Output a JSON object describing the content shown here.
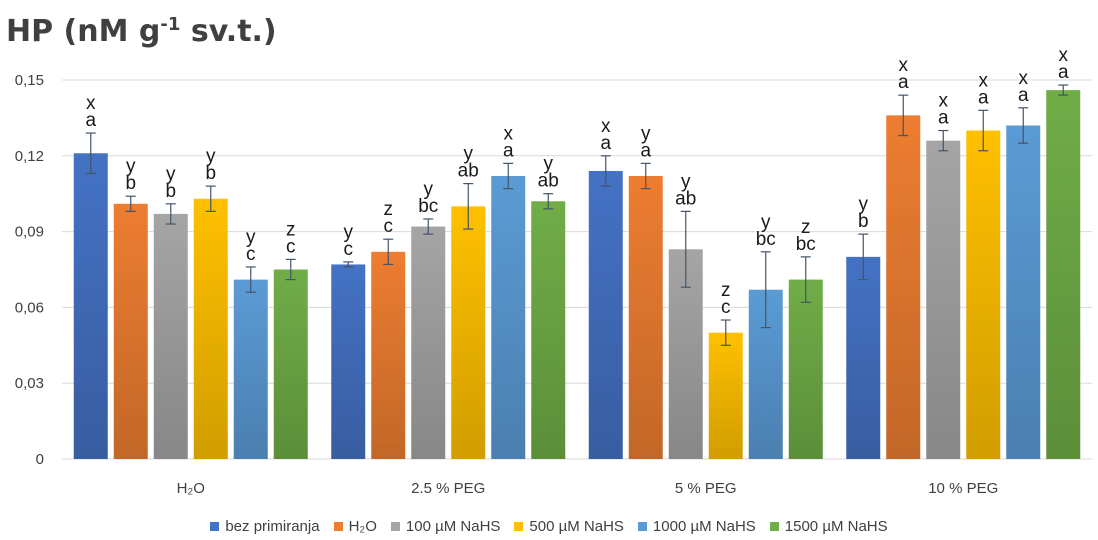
{
  "chart_data": {
    "type": "bar",
    "title": "HP (nM g-1 sv.t.)",
    "title_parts": {
      "main": "HP (nM g",
      "sup": "-1",
      "rest": " sv.t.)"
    },
    "ylim": [
      0,
      0.15
    ],
    "yticks": [
      "0",
      "0,03",
      "0,06",
      "0,09",
      "0,12",
      "0,15"
    ],
    "ytick_values": [
      0,
      0.03,
      0.06,
      0.09,
      0.12,
      0.15
    ],
    "categories": [
      "H₂O",
      "2.5 % PEG",
      "5 % PEG",
      "10 % PEG"
    ],
    "grid": true,
    "legend_position": "bottom",
    "series": [
      {
        "name": "bez primiranja",
        "color": "#4472C4",
        "values": [
          0.121,
          0.077,
          0.114,
          0.08
        ],
        "errors": [
          0.008,
          0.001,
          0.006,
          0.009
        ],
        "labels": [
          [
            "x",
            "a"
          ],
          [
            "y",
            "c"
          ],
          [
            "x",
            "a"
          ],
          [
            "y",
            "b"
          ]
        ]
      },
      {
        "name": "H₂O",
        "color": "#ED7D31",
        "values": [
          0.101,
          0.082,
          0.112,
          0.136
        ],
        "errors": [
          0.003,
          0.005,
          0.005,
          0.008
        ],
        "labels": [
          [
            "y",
            "b"
          ],
          [
            "z",
            "c"
          ],
          [
            "y",
            "a"
          ],
          [
            "x",
            "a"
          ]
        ]
      },
      {
        "name": "100 µM NaHS",
        "color": "#A5A5A5",
        "values": [
          0.097,
          0.092,
          0.083,
          0.126
        ],
        "errors": [
          0.004,
          0.003,
          0.015,
          0.004
        ],
        "labels": [
          [
            "y",
            "b"
          ],
          [
            "y",
            "bc"
          ],
          [
            "y",
            "ab"
          ],
          [
            "x",
            "a"
          ]
        ]
      },
      {
        "name": "500 µM NaHS",
        "color": "#FFC000",
        "values": [
          0.103,
          0.1,
          0.05,
          0.13
        ],
        "errors": [
          0.005,
          0.009,
          0.005,
          0.008
        ],
        "labels": [
          [
            "y",
            "b"
          ],
          [
            "y",
            "ab"
          ],
          [
            "z",
            "c"
          ],
          [
            "x",
            "a"
          ]
        ]
      },
      {
        "name": "1000 µM NaHS",
        "color": "#5B9BD5",
        "values": [
          0.071,
          0.112,
          0.067,
          0.132
        ],
        "errors": [
          0.005,
          0.005,
          0.015,
          0.007
        ],
        "labels": [
          [
            "y",
            "c"
          ],
          [
            "x",
            "a"
          ],
          [
            "y",
            "bc"
          ],
          [
            "x",
            "a"
          ]
        ]
      },
      {
        "name": "1500 µM NaHS",
        "color": "#70AD47",
        "values": [
          0.075,
          0.102,
          0.071,
          0.146
        ],
        "errors": [
          0.004,
          0.003,
          0.009,
          0.002
        ],
        "labels": [
          [
            "z",
            "c"
          ],
          [
            "y",
            "ab"
          ],
          [
            "z",
            "bc"
          ],
          [
            "x",
            "a"
          ]
        ]
      }
    ]
  }
}
